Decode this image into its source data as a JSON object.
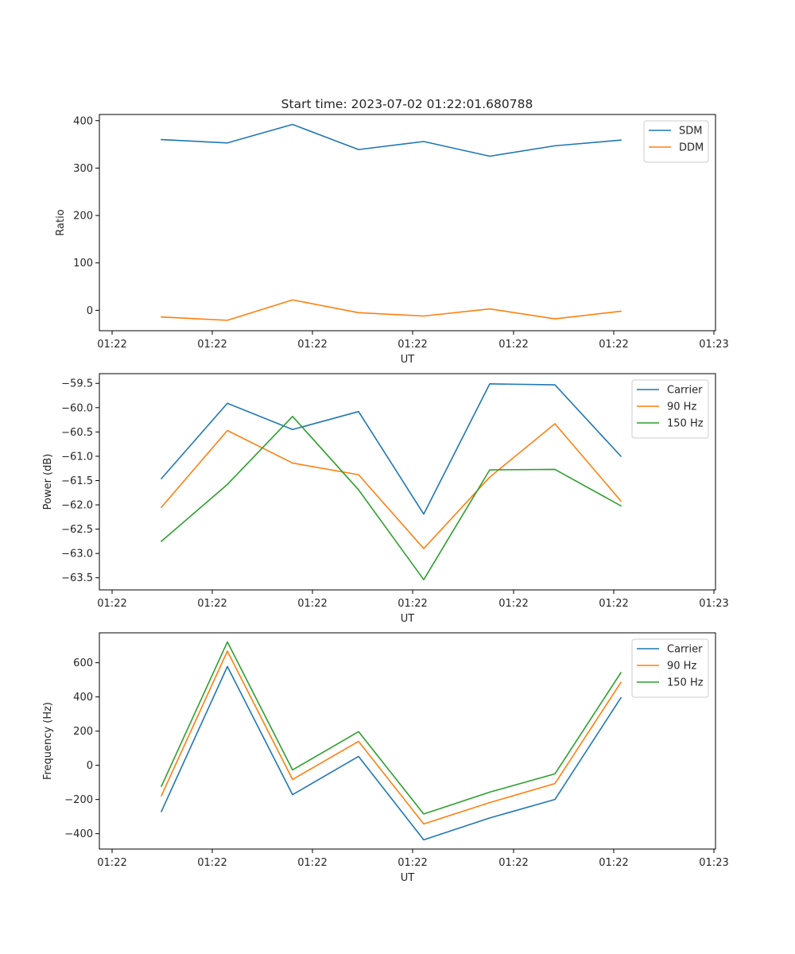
{
  "chart_data": [
    {
      "type": "line",
      "title": "Start time: 2023-07-02 01:22:01.680788",
      "xlabel": "UT",
      "ylabel": "Ratio",
      "x_ticks": [
        "01:22",
        "01:22",
        "01:22",
        "01:22",
        "01:22",
        "01:22",
        "01:23"
      ],
      "ylim": [
        -43,
        413
      ],
      "y_ticks": [
        0,
        100,
        200,
        300,
        400
      ],
      "legend_position": "top-right",
      "series": [
        {
          "name": "SDM",
          "color": "#1f77b4",
          "values": [
            360,
            353,
            392,
            339,
            356,
            325,
            347,
            359
          ]
        },
        {
          "name": "DDM",
          "color": "#ff7f0e",
          "values": [
            -14,
            -21,
            22,
            -5,
            -12,
            3,
            -18,
            -2
          ]
        }
      ]
    },
    {
      "type": "line",
      "title": "",
      "xlabel": "UT",
      "ylabel": "Power (dB)",
      "x_ticks": [
        "01:22",
        "01:22",
        "01:22",
        "01:22",
        "01:22",
        "01:22",
        "01:23"
      ],
      "ylim": [
        -63.75,
        -59.3
      ],
      "y_ticks": [
        -63.5,
        -63.0,
        -62.5,
        -62.0,
        -61.5,
        -61.0,
        -60.5,
        -60.0,
        -59.5
      ],
      "legend_position": "top-right",
      "series": [
        {
          "name": "Carrier",
          "color": "#1f77b4",
          "values": [
            -61.46,
            -59.91,
            -60.45,
            -60.08,
            -62.19,
            -59.51,
            -59.53,
            -61.0
          ]
        },
        {
          "name": "90 Hz",
          "color": "#ff7f0e",
          "values": [
            -62.05,
            -60.47,
            -61.14,
            -61.38,
            -62.9,
            -61.43,
            -60.33,
            -61.92
          ]
        },
        {
          "name": "150 Hz",
          "color": "#2ca02c",
          "values": [
            -62.75,
            -61.58,
            -60.18,
            -61.69,
            -63.54,
            -61.28,
            -61.27,
            -62.02
          ]
        }
      ]
    },
    {
      "type": "line",
      "title": "",
      "xlabel": "UT",
      "ylabel": "Frequency (Hz)",
      "x_ticks": [
        "01:22",
        "01:22",
        "01:22",
        "01:22",
        "01:22",
        "01:22",
        "01:23"
      ],
      "ylim": [
        -490,
        775
      ],
      "y_ticks": [
        -400,
        -200,
        0,
        200,
        400,
        600
      ],
      "legend_position": "top-right",
      "series": [
        {
          "name": "Carrier",
          "color": "#1f77b4",
          "values": [
            -270,
            578,
            -172,
            52,
            -436,
            -308,
            -200,
            395
          ]
        },
        {
          "name": "90 Hz",
          "color": "#ff7f0e",
          "values": [
            -178,
            668,
            -83,
            140,
            -343,
            -218,
            -107,
            485
          ]
        },
        {
          "name": "150 Hz",
          "color": "#2ca02c",
          "values": [
            -123,
            722,
            -27,
            197,
            -285,
            -157,
            -50,
            542
          ]
        }
      ]
    }
  ]
}
